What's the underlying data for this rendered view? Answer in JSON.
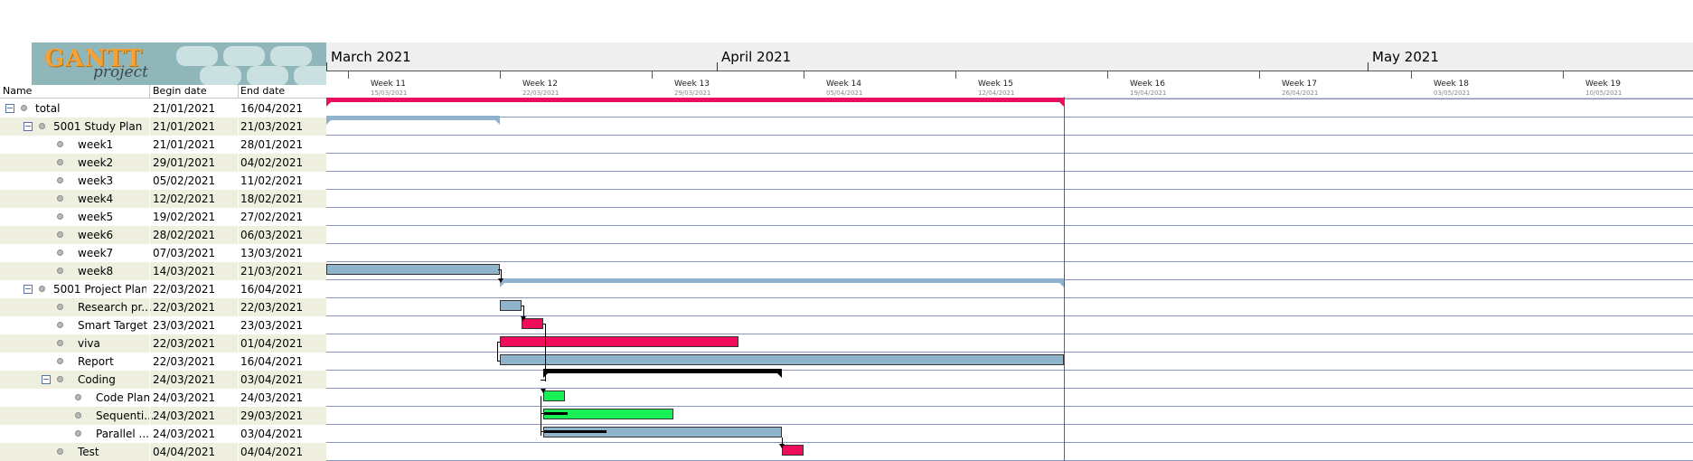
{
  "table": {
    "columns": {
      "name": "Name",
      "begin": "Begin date",
      "end": "End date"
    },
    "rows": [
      {
        "name": "total",
        "begin": "21/01/2021",
        "end": "16/04/2021",
        "level": 0,
        "collapsible": true
      },
      {
        "name": "5001 Study Plan",
        "begin": "21/01/2021",
        "end": "21/03/2021",
        "level": 1,
        "collapsible": true
      },
      {
        "name": "week1",
        "begin": "21/01/2021",
        "end": "28/01/2021",
        "level": 2,
        "collapsible": false
      },
      {
        "name": "week2",
        "begin": "29/01/2021",
        "end": "04/02/2021",
        "level": 2,
        "collapsible": false
      },
      {
        "name": "week3",
        "begin": "05/02/2021",
        "end": "11/02/2021",
        "level": 2,
        "collapsible": false
      },
      {
        "name": "week4",
        "begin": "12/02/2021",
        "end": "18/02/2021",
        "level": 2,
        "collapsible": false
      },
      {
        "name": "week5",
        "begin": "19/02/2021",
        "end": "27/02/2021",
        "level": 2,
        "collapsible": false
      },
      {
        "name": "week6",
        "begin": "28/02/2021",
        "end": "06/03/2021",
        "level": 2,
        "collapsible": false
      },
      {
        "name": "week7",
        "begin": "07/03/2021",
        "end": "13/03/2021",
        "level": 2,
        "collapsible": false
      },
      {
        "name": "week8",
        "begin": "14/03/2021",
        "end": "21/03/2021",
        "level": 2,
        "collapsible": false
      },
      {
        "name": "5001 Project Plan",
        "begin": "22/03/2021",
        "end": "16/04/2021",
        "level": 1,
        "collapsible": true
      },
      {
        "name": "Research pr...",
        "begin": "22/03/2021",
        "end": "22/03/2021",
        "level": 2,
        "collapsible": false
      },
      {
        "name": "Smart Target",
        "begin": "23/03/2021",
        "end": "23/03/2021",
        "level": 2,
        "collapsible": false
      },
      {
        "name": "viva",
        "begin": "22/03/2021",
        "end": "01/04/2021",
        "level": 2,
        "collapsible": false
      },
      {
        "name": "Report",
        "begin": "22/03/2021",
        "end": "16/04/2021",
        "level": 2,
        "collapsible": false
      },
      {
        "name": "Coding",
        "begin": "24/03/2021",
        "end": "03/04/2021",
        "level": 2,
        "collapsible": true
      },
      {
        "name": "Code Plan",
        "begin": "24/03/2021",
        "end": "24/03/2021",
        "level": 3,
        "collapsible": false
      },
      {
        "name": "Sequenti...",
        "begin": "24/03/2021",
        "end": "29/03/2021",
        "level": 3,
        "collapsible": false
      },
      {
        "name": "Parallel ...",
        "begin": "24/03/2021",
        "end": "03/04/2021",
        "level": 3,
        "collapsible": false
      },
      {
        "name": "Test",
        "begin": "04/04/2021",
        "end": "04/04/2021",
        "level": 2,
        "collapsible": false
      }
    ]
  },
  "logo": {
    "title": "GANTT",
    "subtitle": "project"
  },
  "timeline": {
    "months": [
      "March 2021",
      "April 2021",
      "May 2021"
    ],
    "weeks": [
      {
        "label": "Week 11",
        "date": "15/03/2021"
      },
      {
        "label": "Week 12",
        "date": "22/03/2021"
      },
      {
        "label": "Week 13",
        "date": "29/03/2021"
      },
      {
        "label": "Week 14",
        "date": "05/04/2021"
      },
      {
        "label": "Week 15",
        "date": "12/04/2021"
      },
      {
        "label": "Week 16",
        "date": "19/04/2021"
      },
      {
        "label": "Week 17",
        "date": "26/04/2021"
      },
      {
        "label": "Week 18",
        "date": "03/05/2021"
      },
      {
        "label": "Week 19",
        "date": "10/05/2021"
      }
    ],
    "today_marker": "16/04/2021"
  },
  "colors": {
    "summary_red": "#e8105e",
    "summary_blue": "#8fb2cf",
    "task_blue": "#91b4cd",
    "task_red": "#ee0c5b",
    "task_green": "#19f058",
    "summary_black": "#000000",
    "row_alt": "#efefe0"
  },
  "bars": [
    {
      "row": 0,
      "start": "21/01/2021",
      "end": "16/04/2021",
      "kind": "summary",
      "color": "#e8105e"
    },
    {
      "row": 1,
      "start": "21/01/2021",
      "end": "21/03/2021",
      "kind": "summary",
      "color": "#8fb2cf"
    },
    {
      "row": 9,
      "start": "14/03/2021",
      "end": "21/03/2021",
      "kind": "task",
      "color": "#91b4cd"
    },
    {
      "row": 10,
      "start": "22/03/2021",
      "end": "16/04/2021",
      "kind": "summary",
      "color": "#8fb2cf"
    },
    {
      "row": 11,
      "start": "22/03/2021",
      "end": "22/03/2021",
      "kind": "task",
      "color": "#91b4cd"
    },
    {
      "row": 12,
      "start": "23/03/2021",
      "end": "23/03/2021",
      "kind": "task",
      "color": "#ee0c5b"
    },
    {
      "row": 13,
      "start": "22/03/2021",
      "end": "01/04/2021",
      "kind": "task",
      "color": "#ee0c5b"
    },
    {
      "row": 14,
      "start": "22/03/2021",
      "end": "16/04/2021",
      "kind": "task",
      "color": "#91b4cd"
    },
    {
      "row": 15,
      "start": "24/03/2021",
      "end": "03/04/2021",
      "kind": "summary",
      "color": "#000000"
    },
    {
      "row": 16,
      "start": "24/03/2021",
      "end": "24/03/2021",
      "kind": "task",
      "color": "#19f058"
    },
    {
      "row": 17,
      "start": "24/03/2021",
      "end": "29/03/2021",
      "kind": "task",
      "color": "#19f058",
      "progress": 0.18
    },
    {
      "row": 18,
      "start": "24/03/2021",
      "end": "03/04/2021",
      "kind": "task",
      "color": "#91b4cd",
      "progress": 0.26
    },
    {
      "row": 19,
      "start": "04/04/2021",
      "end": "04/04/2021",
      "kind": "task",
      "color": "#ee0c5b"
    }
  ]
}
